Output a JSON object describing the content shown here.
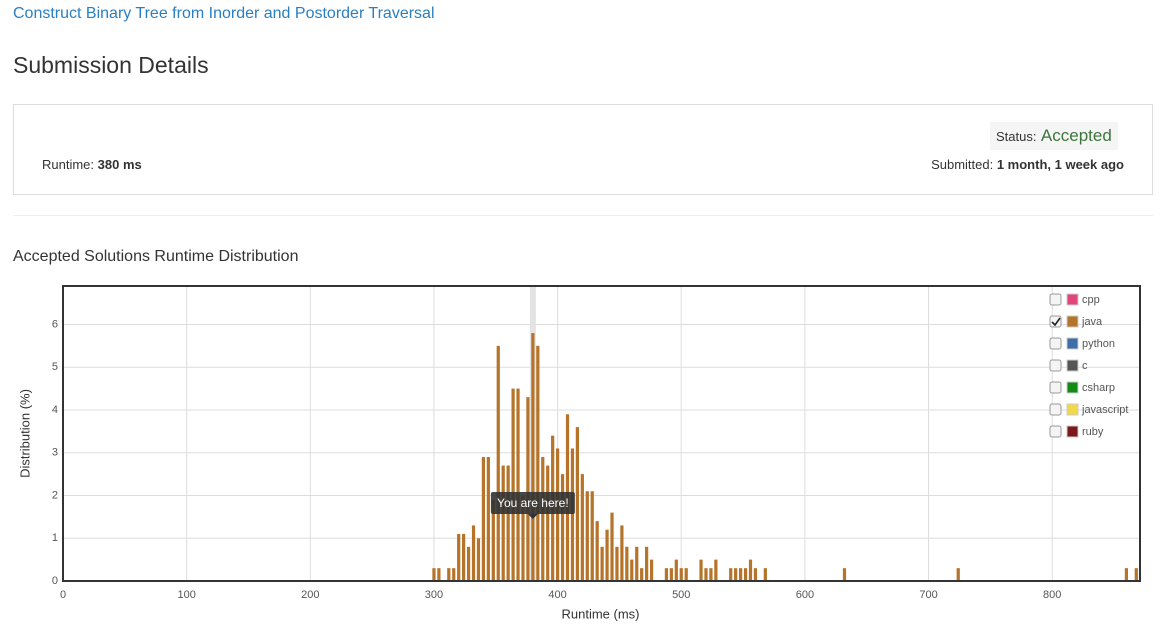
{
  "header": {
    "problem_title": "Construct Binary Tree from Inorder and Postorder Traversal",
    "page_title": "Submission Details"
  },
  "submission": {
    "status_label": "Status:",
    "status": "Accepted",
    "runtime_label": "Runtime:",
    "runtime": "380 ms",
    "submitted_label": "Submitted:",
    "submitted": "1 month, 1 week ago"
  },
  "chart_data": {
    "type": "bar",
    "title": "Accepted Solutions Runtime Distribution",
    "x_label": "Runtime (ms)",
    "y_label": "Distribution (%)",
    "x": [
      300,
      304,
      312,
      316,
      320,
      324,
      328,
      332,
      336,
      340,
      344,
      348,
      352,
      356,
      360,
      364,
      368,
      372,
      376,
      380,
      384,
      388,
      392,
      396,
      400,
      404,
      408,
      412,
      416,
      420,
      424,
      428,
      432,
      436,
      440,
      444,
      448,
      452,
      456,
      460,
      464,
      468,
      472,
      476,
      488,
      492,
      496,
      500,
      504,
      516,
      520,
      524,
      528,
      540,
      544,
      548,
      552,
      556,
      560,
      568,
      632,
      724,
      860,
      868
    ],
    "series": [
      {
        "name": "java",
        "color": "#b5742a",
        "values": [
          0.3,
          0.3,
          0.3,
          0.3,
          1.1,
          1.1,
          0.8,
          1.3,
          1.0,
          2.9,
          2.9,
          1.9,
          5.5,
          2.7,
          2.7,
          4.5,
          4.5,
          2.0,
          4.3,
          5.8,
          5.5,
          2.9,
          2.7,
          3.4,
          3.1,
          2.5,
          3.9,
          3.1,
          3.6,
          2.5,
          2.1,
          2.1,
          1.4,
          0.8,
          1.2,
          1.6,
          0.8,
          1.3,
          0.8,
          0.5,
          0.8,
          0.3,
          0.8,
          0.5,
          0.3,
          0.3,
          0.5,
          0.3,
          0.3,
          0.5,
          0.3,
          0.3,
          0.5,
          0.3,
          0.3,
          0.3,
          0.3,
          0.5,
          0.3,
          0.3,
          0.3,
          0.3,
          0.3,
          0.3
        ]
      }
    ],
    "legend": [
      {
        "name": "cpp",
        "color": "#e0457b",
        "checked": false
      },
      {
        "name": "java",
        "color": "#b5742a",
        "checked": true
      },
      {
        "name": "python",
        "color": "#3e6ea8",
        "checked": false
      },
      {
        "name": "c",
        "color": "#555555",
        "checked": false
      },
      {
        "name": "csharp",
        "color": "#138a13",
        "checked": false
      },
      {
        "name": "javascript",
        "color": "#f0d94a",
        "checked": false
      },
      {
        "name": "ruby",
        "color": "#7a1a1a",
        "checked": false
      }
    ],
    "highlight": {
      "x": 380,
      "label": "You are here!"
    },
    "xlim": [
      0,
      871
    ],
    "ylim": [
      0,
      6.9
    ],
    "xticks": [
      0,
      100,
      200,
      300,
      400,
      500,
      600,
      700,
      800
    ],
    "yticks": [
      0,
      1,
      2,
      3,
      4,
      5,
      6
    ],
    "grid": true
  }
}
